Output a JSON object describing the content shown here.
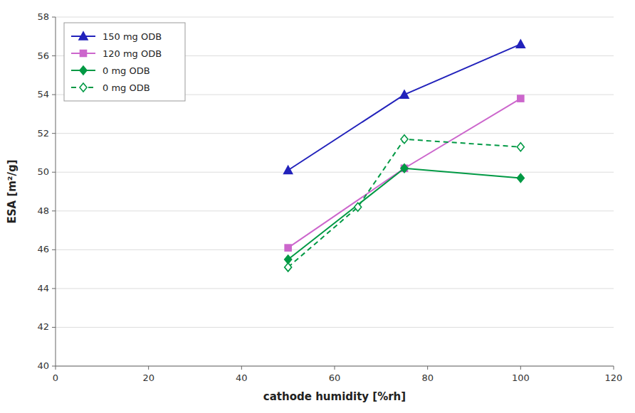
{
  "chart_data": {
    "type": "line",
    "xlabel": "cathode humidity [%rh]",
    "ylabel": "ESA [m²/g]",
    "series": [
      {
        "name": "150 mg ODB",
        "color": "#2222bb",
        "marker": "triangle",
        "line_style": "solid",
        "x": [
          50,
          75,
          100
        ],
        "values": [
          50.1,
          54.0,
          56.6
        ]
      },
      {
        "name": "120 mg ODB",
        "color": "#cc66cc",
        "marker": "square",
        "line_style": "solid",
        "x": [
          50,
          75,
          100
        ],
        "values": [
          46.1,
          50.2,
          53.8
        ]
      },
      {
        "name": "0 mg ODB",
        "color": "#009944",
        "marker": "diamond",
        "line_style": "solid",
        "x": [
          50,
          75,
          100
        ],
        "values": [
          45.5,
          50.2,
          49.7
        ]
      },
      {
        "name": "0 mg ODB",
        "color": "#009944",
        "marker": "diamond-open",
        "line_style": "dashed",
        "x": [
          50,
          65,
          75,
          100
        ],
        "values": [
          45.1,
          48.2,
          51.7,
          51.3
        ]
      }
    ],
    "xlim": [
      0,
      120
    ],
    "ylim": [
      40,
      58
    ],
    "xticks": [
      0,
      20,
      40,
      60,
      80,
      100,
      120
    ],
    "yticks": [
      40,
      42,
      44,
      46,
      48,
      50,
      52,
      54,
      56,
      58
    ],
    "grid": true,
    "legend": "upper left"
  }
}
